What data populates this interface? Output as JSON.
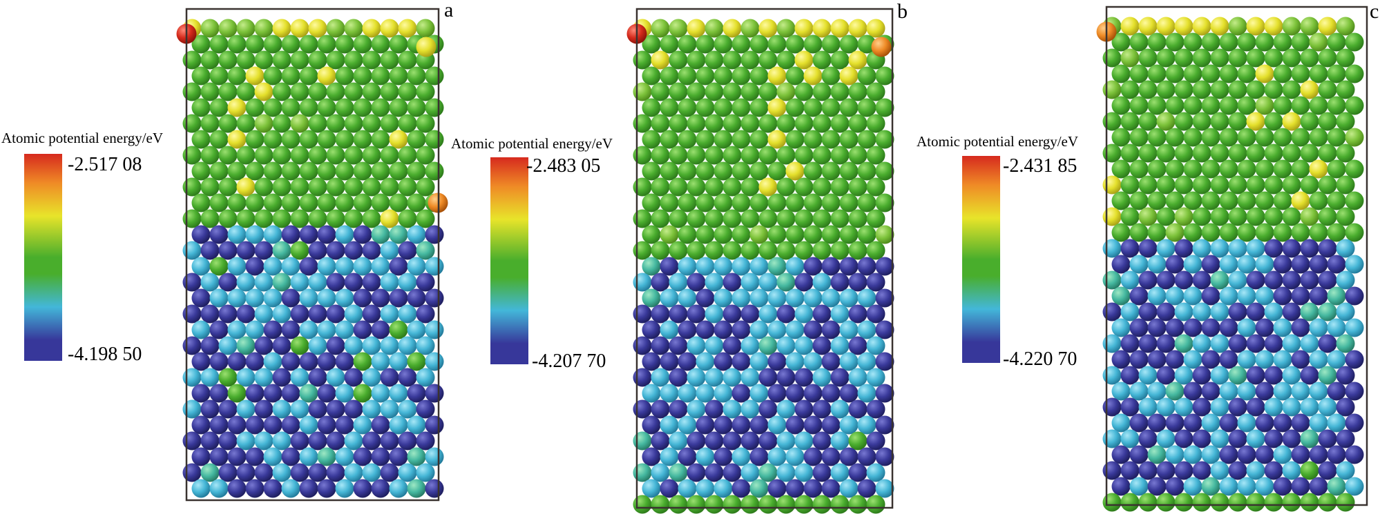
{
  "panels": [
    {
      "letter": "a",
      "colorbar": {
        "title": "Atomic potential energy/eV",
        "max": "-2.517 08",
        "min": "-4.198 50"
      }
    },
    {
      "letter": "b",
      "colorbar": {
        "title": "Atomic potential energy/eV",
        "max": "-2.483 05",
        "min": "-4.207 70"
      }
    },
    {
      "letter": "c",
      "colorbar": {
        "title": "Atomic potential energy/eV",
        "max": "-2.431 85",
        "min": "-4.220 70"
      }
    }
  ],
  "colors": {
    "red": "#d62a1e",
    "orange": "#ef8a26",
    "yellow": "#e8e42a",
    "green": "#49ae2c",
    "cyan": "#43b7d9",
    "blue": "#37379a",
    "frame": "#3a3330"
  }
}
